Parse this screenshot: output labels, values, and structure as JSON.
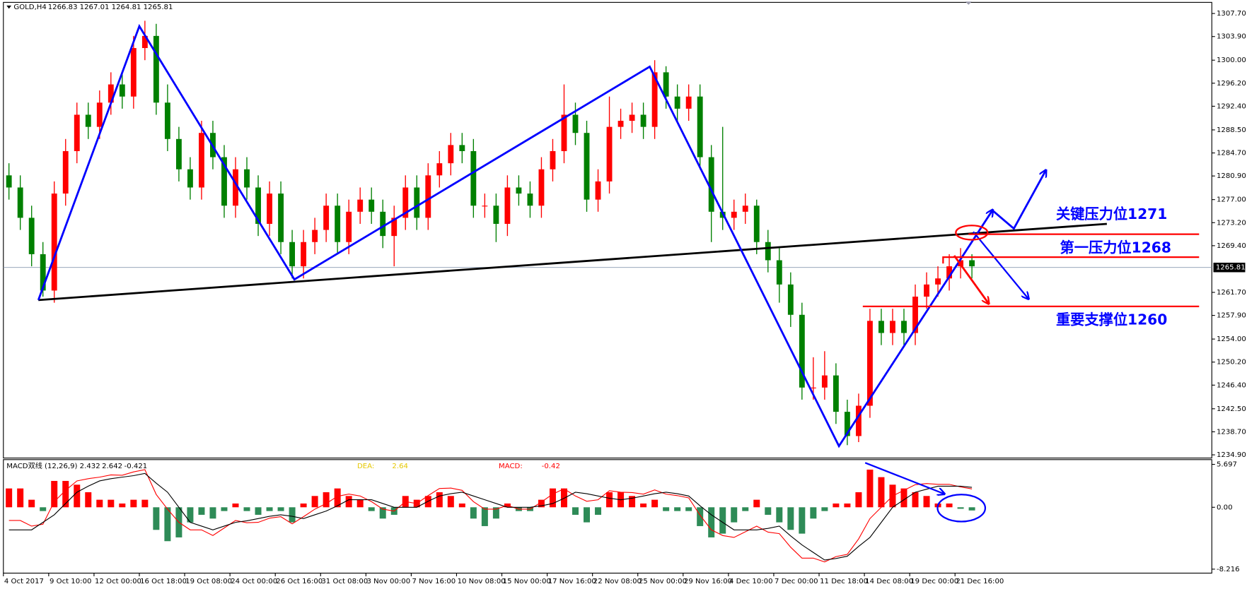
{
  "chart_data": [
    {
      "type": "candlestick",
      "title": "GOLD,H4",
      "ohlc_header": [
        1266.83,
        1267.01,
        1264.81,
        1265.81
      ],
      "categories": [
        "4 Oct 2017",
        null,
        null,
        null,
        "9 Oct 10:00",
        null,
        null,
        null,
        "12 Oct 00:00",
        null,
        null,
        null,
        "16 Oct 18:00",
        null,
        null,
        null,
        "19 Oct 08:00",
        null,
        null,
        null,
        "24 Oct 00:00",
        null,
        null,
        null,
        "26 Oct 16:00",
        null,
        null,
        null,
        "31 Oct 08:00",
        null,
        null,
        null,
        "3 Nov 00:00",
        null,
        null,
        null,
        "7 Nov 16:00",
        null,
        null,
        null,
        "10 Nov 08:00",
        null,
        null,
        null,
        "15 Nov 00:00",
        null,
        null,
        null,
        "17 Nov 16:00",
        null,
        null,
        null,
        "22 Nov 08:00",
        null,
        null,
        null,
        "25 Nov 00:00",
        null,
        null,
        null,
        "29 Nov 16:00",
        null,
        null,
        null,
        "4 Dec 10:00",
        null,
        null,
        null,
        "7 Dec 00:00",
        null,
        null,
        null,
        "11 Dec 18:00",
        null,
        null,
        null,
        "14 Dec 08:00",
        null,
        null,
        null,
        "19 Dec 00:00",
        null,
        null,
        null,
        "21 Dec 16:00",
        null
      ],
      "open": [
        1281,
        1279,
        1274,
        1268,
        1262,
        1278,
        1285,
        1291,
        1289,
        1293,
        1296,
        1294,
        1302,
        1304,
        1293,
        1287,
        1282,
        1279,
        1288,
        1284,
        1276,
        1282,
        1279,
        1273,
        1278,
        1270,
        1266,
        1270,
        1272,
        1276,
        1270,
        1275,
        1277,
        1275,
        1271,
        1274,
        1279,
        1274,
        1281,
        1283,
        1286,
        1285,
        1276,
        1276,
        1273,
        1279,
        1278,
        1276,
        1282,
        1285,
        1291,
        1288,
        1277,
        1280,
        1289,
        1290,
        1291,
        1289,
        1298,
        1294,
        1292,
        1294,
        1284,
        1275,
        1274,
        1275,
        1276,
        1270,
        1267,
        1263,
        1258,
        1246,
        1246,
        1248,
        1242,
        1238,
        1243,
        1257,
        1255,
        1257,
        1255,
        1261,
        1263,
        1264,
        1266,
        1267
      ],
      "high": [
        1283,
        1281,
        1276,
        1270,
        1280,
        1287,
        1293,
        1293,
        1295,
        1298,
        1298,
        1304,
        1306.5,
        1306,
        1296,
        1289,
        1284,
        1290,
        1290,
        1286,
        1284,
        1284,
        1281,
        1280,
        1280,
        1272,
        1272,
        1274,
        1278,
        1278,
        1277,
        1279,
        1279,
        1277,
        1276,
        1281,
        1281,
        1283,
        1285,
        1288,
        1288,
        1287,
        1278,
        1278,
        1281,
        1281,
        1280,
        1284,
        1287,
        1296,
        1293,
        1290,
        1282,
        1294,
        1292,
        1293,
        1293,
        1300,
        1299,
        1296,
        1296,
        1296,
        1286,
        1289,
        1277,
        1278,
        1277,
        1272,
        1269,
        1265,
        1260,
        1251,
        1252,
        1250,
        1244,
        1245,
        1259,
        1259,
        1259,
        1259,
        1263,
        1265,
        1266,
        1268,
        1269,
        1268
      ],
      "low": [
        1277,
        1272,
        1266,
        1261,
        1260,
        1276,
        1283,
        1287,
        1287,
        1291,
        1292,
        1292,
        1300,
        1291,
        1285,
        1280,
        1277,
        1277,
        1282,
        1274,
        1274,
        1277,
        1271,
        1271,
        1268,
        1264,
        1264,
        1268,
        1270,
        1268,
        1268,
        1273,
        1273,
        1269,
        1266,
        1272,
        1272,
        1272,
        1279,
        1281,
        1283,
        1274,
        1274,
        1270,
        1271,
        1276,
        1274,
        1274,
        1280,
        1283,
        1286,
        1275,
        1275,
        1278,
        1287,
        1288,
        1287,
        1287,
        1292,
        1290,
        1290,
        1282,
        1270,
        1272,
        1272,
        1273,
        1268,
        1265,
        1260,
        1256,
        1244,
        1244,
        1244,
        1240,
        1236.5,
        1237,
        1241,
        1253,
        1253,
        1253,
        1253,
        1259,
        1261,
        1262,
        1264,
        1264
      ],
      "close": [
        1279,
        1274,
        1268,
        1262,
        1278,
        1285,
        1291,
        1289,
        1293,
        1296,
        1294,
        1302,
        1304,
        1293,
        1287,
        1282,
        1279,
        1288,
        1284,
        1276,
        1282,
        1279,
        1273,
        1278,
        1270,
        1266,
        1270,
        1272,
        1276,
        1270,
        1275,
        1277,
        1275,
        1271,
        1274,
        1279,
        1274,
        1281,
        1283,
        1286,
        1285,
        1276,
        1276,
        1273,
        1279,
        1278,
        1276,
        1282,
        1285,
        1291,
        1288,
        1277,
        1280,
        1289,
        1290,
        1291,
        1289,
        1298,
        1294,
        1292,
        1294,
        1284,
        1275,
        1274,
        1275,
        1276,
        1270,
        1267,
        1263,
        1258,
        1246,
        1246,
        1248,
        1242,
        1238,
        1243,
        1257,
        1255,
        1257,
        1255,
        1261,
        1263,
        1264,
        1266,
        1267,
        1266
      ],
      "colors": {
        "up": "#ff0000",
        "down": "#008000"
      },
      "ylim": [
        1234.9,
        1307.7
      ],
      "yticks": [
        {
          "value": 1307.7,
          "label": "1307.70"
        },
        {
          "value": 1303.9,
          "label": "1303.90"
        },
        {
          "value": 1300,
          "label": "1300.00"
        },
        {
          "value": 1296.2,
          "label": "1296.20"
        },
        {
          "value": 1292.4,
          "label": "1292.40"
        },
        {
          "value": 1288.5,
          "label": "1288.50"
        },
        {
          "value": 1284.7,
          "label": "1284.70"
        },
        {
          "value": 1280.9,
          "label": "1280.90"
        },
        {
          "value": 1277,
          "label": "1277.00"
        },
        {
          "value": 1273.2,
          "label": "1273.20"
        },
        {
          "value": 1269.4,
          "label": "1269.40"
        },
        {
          "value": 1261.7,
          "label": "1261.70"
        },
        {
          "value": 1257.9,
          "label": "1257.90"
        },
        {
          "value": 1254,
          "label": "1254.00"
        },
        {
          "value": 1250.2,
          "label": "1250.20"
        },
        {
          "value": 1246.4,
          "label": "1246.40"
        },
        {
          "value": 1242.5,
          "label": "1242.50"
        },
        {
          "value": 1238.7,
          "label": "1238.70"
        },
        {
          "value": 1234.9,
          "label": "1234.90"
        }
      ],
      "current_price": 1265.81,
      "annotations": [
        "关键压力位1271",
        "第一压力位1268",
        "重要支撑位1260"
      ]
    },
    {
      "type": "macd",
      "title": "MACD双线 (12,26,9)",
      "header_values": [
        2.432,
        2.642,
        -0.421
      ],
      "dea_label": "DEA:",
      "dea_value": 2.64,
      "macd_label": "MACD:",
      "macd_value": -0.42,
      "histogram": [
        2.5,
        2.5,
        1,
        -0.5,
        3.5,
        3.5,
        3,
        2,
        1,
        1,
        0.5,
        1,
        1,
        -3,
        -4.5,
        -4,
        -2,
        -1,
        -1.5,
        -0.5,
        0.5,
        -0.5,
        -1,
        -0.5,
        -0.5,
        -2,
        0.5,
        1.5,
        2,
        2.5,
        1.5,
        1,
        -0.5,
        -1.5,
        -1,
        1.5,
        1,
        1.5,
        2,
        1.5,
        0.5,
        -1.5,
        -2.5,
        -1.5,
        0.5,
        -0.5,
        -0.5,
        1,
        2.5,
        2.5,
        -1,
        -2,
        -1,
        2,
        2,
        1.5,
        0.5,
        1,
        -0.5,
        -0.5,
        -0.5,
        -2.5,
        -4,
        -3.5,
        -2,
        -0.5,
        1,
        -1,
        -2,
        -3,
        -3.5,
        -1.5,
        -0.5,
        0.5,
        0.5,
        2,
        5,
        4,
        3,
        2.5,
        2,
        1.5,
        0.5,
        0.5,
        -0.2,
        -0.421
      ],
      "histogram_colors": {
        "up": "#ff0000",
        "down": "#2e8b57"
      },
      "series": [
        {
          "color": "#ff0000",
          "values": [
            -1.75,
            -1.75,
            -2.5,
            -2.25,
            0.75,
            2.25,
            3.5,
            3.8,
            4,
            4.3,
            4.25,
            4.7,
            5,
            1.7,
            -0.25,
            -2,
            -3,
            -3,
            -3.75,
            -2.75,
            -1.75,
            -2.05,
            -2,
            -1.45,
            -1.25,
            -2.2,
            -1.25,
            -0.25,
            0.5,
            1.45,
            1.75,
            1.5,
            0.75,
            -0.25,
            -0.5,
            0.75,
            0.5,
            1.55,
            2.5,
            2.55,
            2.25,
            0.75,
            -0.25,
            -0.25,
            0.25,
            -0.25,
            -0.25,
            0.7,
            1.75,
            2.45,
            1.5,
            0.8,
            1,
            2.2,
            2,
            1.95,
            1.75,
            2.3,
            1.75,
            1.55,
            1.25,
            -1.05,
            -3,
            -3.75,
            -4,
            -3.25,
            -2.5,
            -3.3,
            -3.5,
            -5.3,
            -6.75,
            -6.75,
            -7.25,
            -6.55,
            -6.25,
            -4.2,
            -1.5,
            0,
            1.5,
            2.25,
            3,
            3.15,
            3.05,
            3.05,
            2.7,
            2.432
          ]
        },
        {
          "color": "#000000",
          "values": [
            -3,
            -3,
            -3,
            -2,
            -1,
            0.5,
            2,
            2.8,
            3.5,
            3.8,
            4,
            4.2,
            4.5,
            3.2,
            2,
            0,
            -2,
            -2.5,
            -3,
            -2.5,
            -2,
            -1.8,
            -1.5,
            -1.2,
            -1,
            -1.2,
            -1.5,
            -1,
            -0.5,
            0.2,
            1,
            1,
            1,
            0.5,
            0,
            0,
            0,
            0.8,
            1.5,
            1.8,
            2,
            1.5,
            1,
            0.5,
            0,
            0,
            0,
            0.2,
            0.5,
            1.2,
            2,
            1.8,
            1.5,
            1.2,
            1,
            1.2,
            1.5,
            1.8,
            2,
            1.8,
            1.5,
            0.2,
            -1,
            -2,
            -3,
            -3,
            -3,
            -2.8,
            -2.5,
            -3.8,
            -5,
            -6,
            -7,
            -6.8,
            -6.5,
            -5.2,
            -4,
            -2,
            0,
            1,
            2,
            2.4,
            2.8,
            2.8,
            2.8,
            2.642
          ]
        }
      ],
      "ylim": [
        -8.216,
        5.697
      ],
      "yticks": [
        5.697,
        {
          "value": 0,
          "label": "0.00"
        },
        -8.216
      ]
    }
  ]
}
